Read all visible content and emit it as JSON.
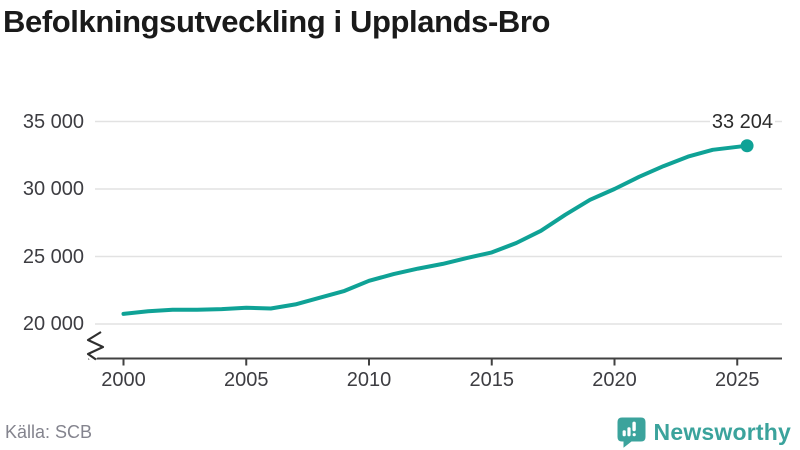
{
  "title": "Befolkningsutveckling i Upplands-Bro",
  "source": "Källa: SCB",
  "branding": {
    "name": "Newsworthy",
    "icon": "newsworthy-speech-bubble-bar-chart-icon",
    "color": "#3BA39C"
  },
  "chart_data": {
    "type": "line",
    "title": "Befolkningsutveckling i Upplands-Bro",
    "x": [
      2000,
      2001,
      2002,
      2003,
      2004,
      2005,
      2006,
      2007,
      2008,
      2009,
      2010,
      2011,
      2012,
      2013,
      2014,
      2015,
      2016,
      2017,
      2018,
      2019,
      2020,
      2021,
      2022,
      2023,
      2024,
      2025
    ],
    "series": [
      {
        "name": "Upplands-Bro",
        "color": "#0FA296",
        "values": [
          20750,
          20950,
          21050,
          21050,
          21100,
          21200,
          21150,
          21450,
          21950,
          22450,
          23200,
          23700,
          24100,
          24450,
          24900,
          25300,
          26000,
          26900,
          28100,
          29200,
          30000,
          30900,
          31700,
          32400,
          32900,
          33204
        ]
      }
    ],
    "end_value": 33204,
    "end_label": "33 204",
    "xlabel": "",
    "ylabel": "",
    "xticks": {
      "values": [
        2000,
        2005,
        2010,
        2015,
        2020,
        2025
      ],
      "labels": [
        "2000",
        "2005",
        "2010",
        "2015",
        "2020",
        "2025"
      ]
    },
    "yticks": {
      "values": [
        20000,
        25000,
        30000,
        35000
      ],
      "labels": [
        "20 000",
        "25 000",
        "30 000",
        "35 000"
      ]
    },
    "ylim": [
      20000,
      35000
    ],
    "xlim": [
      2000,
      2025.4
    ],
    "end_x": 2025.4,
    "grid": "horizontal",
    "legend": "none",
    "axis_break": true,
    "line_color": "#0FA296",
    "marker_color": "#0FA296",
    "grid_color": "#e2e2e2",
    "axis_color": "#414141"
  }
}
